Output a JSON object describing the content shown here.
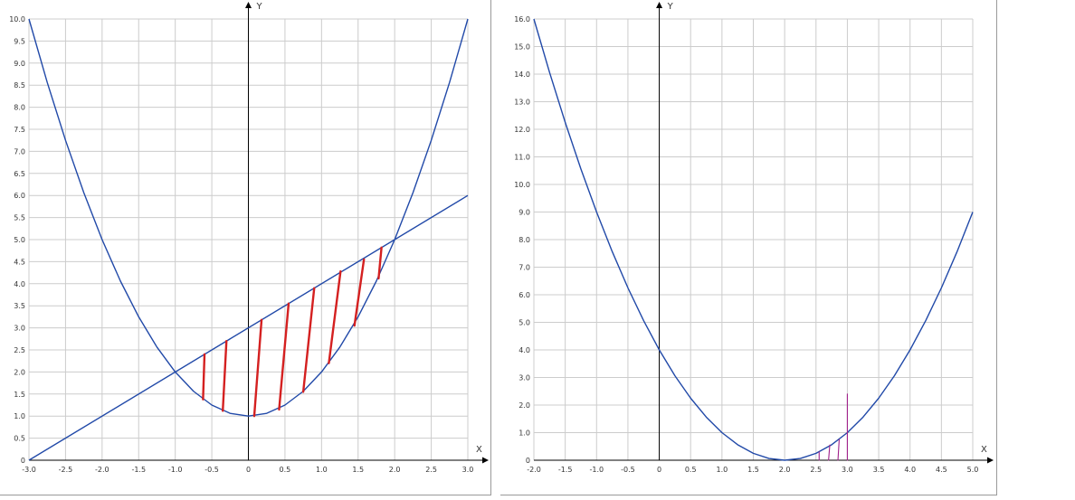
{
  "colors": {
    "background": "#ffffff",
    "grid": "#cccccc",
    "axis": "#000000",
    "curve": "#2149a8",
    "hatch_left": "#d42020",
    "hatch_right": "#a0208a"
  },
  "chart_data": [
    {
      "type": "line",
      "title": "",
      "xlabel": "X",
      "ylabel": "Y",
      "xlim": [
        -3.0,
        3.0
      ],
      "ylim": [
        0,
        10.0
      ],
      "grid": true,
      "x_ticks": [
        "-3.0",
        "-2.5",
        "-2.0",
        "-1.5",
        "-1.0",
        "-0.5",
        "0",
        "0.5",
        "1.0",
        "1.5",
        "2.0",
        "2.5",
        "3.0"
      ],
      "y_ticks": [
        "0",
        "0.5",
        "1.0",
        "1.5",
        "2.0",
        "2.5",
        "3.0",
        "3.5",
        "4.0",
        "4.5",
        "5.0",
        "5.5",
        "6.0",
        "6.5",
        "7.0",
        "7.5",
        "8.0",
        "8.5",
        "9.0",
        "9.5",
        "10.0"
      ],
      "series": [
        {
          "x": [
            -3.0,
            -2.75,
            -2.5,
            -2.25,
            -2.0,
            -1.75,
            -1.5,
            -1.25,
            -1.0,
            -0.75,
            -0.5,
            -0.25,
            0.0,
            0.25,
            0.5,
            0.75,
            1.0,
            1.25,
            1.5,
            1.75,
            2.0,
            2.25,
            2.5,
            2.75,
            3.0
          ],
          "y": [
            10.0,
            8.5625,
            7.25,
            6.0625,
            5.0,
            4.0625,
            3.25,
            2.5625,
            2.0,
            1.5625,
            1.25,
            1.0625,
            1.0,
            1.0625,
            1.25,
            1.5625,
            2.0,
            2.5625,
            3.25,
            4.0625,
            5.0,
            6.0625,
            7.25,
            8.5625,
            10.0
          ]
        },
        {
          "x": [
            -3.0,
            3.0
          ],
          "y": [
            0.0,
            6.0
          ]
        }
      ],
      "hatch_segments": [
        {
          "x1": -0.62,
          "y1": 1.38,
          "x2": -0.6,
          "y2": 2.4
        },
        {
          "x1": -0.35,
          "y1": 1.12,
          "x2": -0.3,
          "y2": 2.7
        },
        {
          "x1": 0.08,
          "y1": 1.0,
          "x2": 0.18,
          "y2": 3.18
        },
        {
          "x1": 0.42,
          "y1": 1.15,
          "x2": 0.55,
          "y2": 3.55
        },
        {
          "x1": 0.75,
          "y1": 1.55,
          "x2": 0.9,
          "y2": 3.9
        },
        {
          "x1": 1.1,
          "y1": 2.2,
          "x2": 1.26,
          "y2": 4.28
        },
        {
          "x1": 1.45,
          "y1": 3.05,
          "x2": 1.58,
          "y2": 4.55
        },
        {
          "x1": 1.78,
          "y1": 4.12,
          "x2": 1.82,
          "y2": 4.82
        }
      ]
    },
    {
      "type": "line",
      "title": "",
      "xlabel": "X",
      "ylabel": "Y",
      "xlim": [
        -2.0,
        5.0
      ],
      "ylim": [
        0,
        16.0
      ],
      "grid": true,
      "x_ticks": [
        "-2.0",
        "-1.5",
        "-1.0",
        "-0.5",
        "0",
        "0.5",
        "1.0",
        "1.5",
        "2.0",
        "2.5",
        "3.0",
        "3.5",
        "4.0",
        "4.5",
        "5.0"
      ],
      "y_ticks": [
        "0",
        "1.0",
        "2.0",
        "3.0",
        "4.0",
        "5.0",
        "6.0",
        "7.0",
        "8.0",
        "9.0",
        "10.0",
        "11.0",
        "12.0",
        "13.0",
        "14.0",
        "15.0",
        "16.0"
      ],
      "series": [
        {
          "x": [
            -2.0,
            -1.75,
            -1.5,
            -1.25,
            -1.0,
            -0.75,
            -0.5,
            -0.25,
            0.0,
            0.25,
            0.5,
            0.75,
            1.0,
            1.25,
            1.5,
            1.75,
            2.0,
            2.25,
            2.5,
            2.75,
            3.0,
            3.25,
            3.5,
            3.75,
            4.0,
            4.25,
            4.5,
            4.75,
            5.0
          ],
          "y": [
            16.0,
            14.0625,
            12.25,
            10.5625,
            9.0,
            7.5625,
            6.25,
            5.0625,
            4.0,
            3.0625,
            2.25,
            1.5625,
            1.0,
            0.5625,
            0.25,
            0.0625,
            0.0,
            0.0625,
            0.25,
            0.5625,
            1.0,
            1.5625,
            2.25,
            3.0625,
            4.0,
            5.0625,
            6.25,
            7.5625,
            9.0
          ]
        }
      ],
      "hatch_segments": [
        {
          "x1": 2.55,
          "y1": 0.0,
          "x2": 2.55,
          "y2": 0.3
        },
        {
          "x1": 2.7,
          "y1": 0.0,
          "x2": 2.72,
          "y2": 0.55
        },
        {
          "x1": 2.85,
          "y1": 0.0,
          "x2": 2.87,
          "y2": 0.75
        },
        {
          "x1": 3.0,
          "y1": 0.0,
          "x2": 3.0,
          "y2": 2.4
        }
      ]
    }
  ]
}
